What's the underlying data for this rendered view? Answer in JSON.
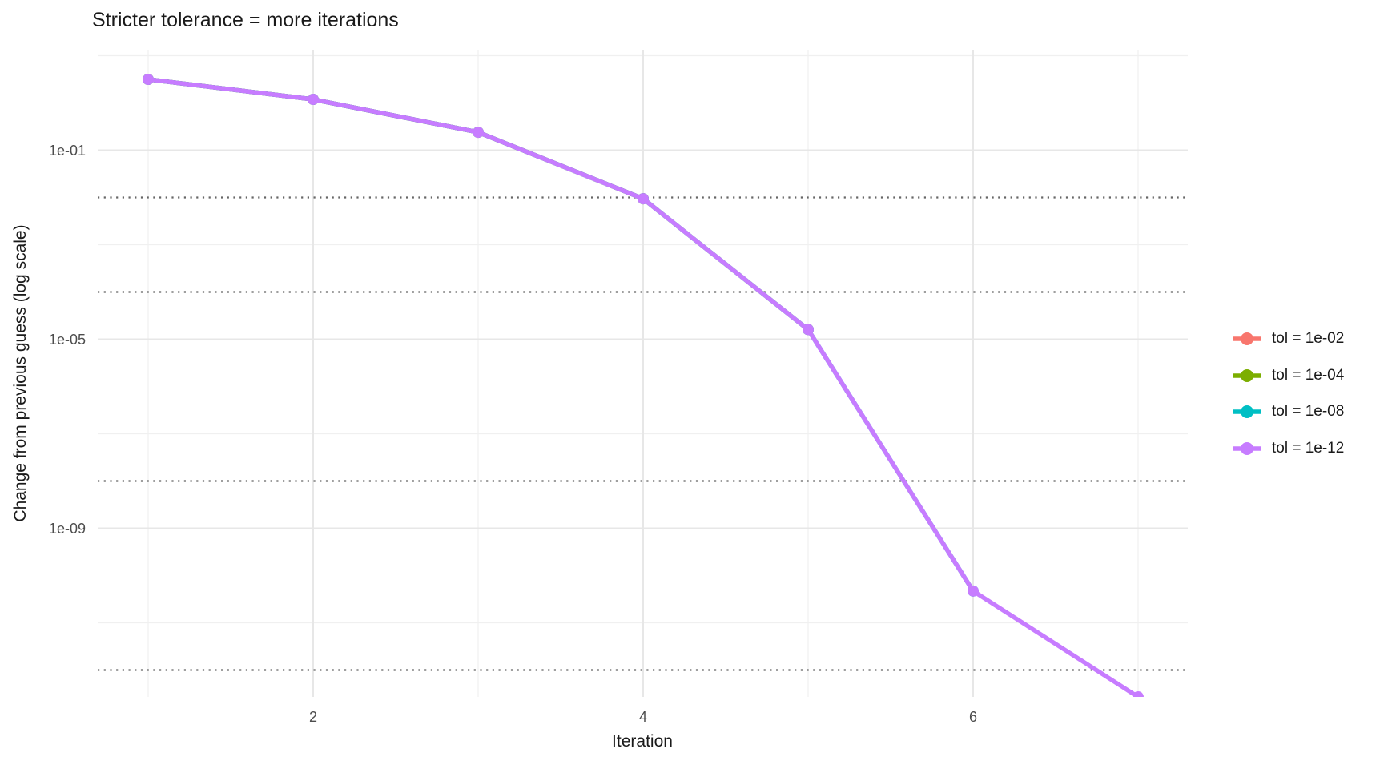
{
  "chart_data": {
    "type": "line",
    "title": "Stricter tolerance = more iterations",
    "xlabel": "Iteration",
    "ylabel": "Change from previous guess (log scale)",
    "y_axis_scale": "log10",
    "grid": true,
    "legend_position": "right",
    "x_ticks": [
      {
        "value": 2,
        "label": "2"
      },
      {
        "value": 4,
        "label": "4"
      },
      {
        "value": 6,
        "label": "6"
      }
    ],
    "x_minor": [
      1,
      3,
      5,
      7
    ],
    "x_range": [
      0.7,
      7.3
    ],
    "y_ticks": [
      {
        "value": 0.1,
        "label": "1e-01"
      },
      {
        "value": 1e-05,
        "label": "1e-05"
      },
      {
        "value": 1e-09,
        "label": "1e-09"
      }
    ],
    "y_minor": [
      10.0,
      0.001,
      1e-07,
      1e-11
    ],
    "y_range": [
      2.2e-13,
      11.5
    ],
    "tolerance_guides": {
      "style": "dotted",
      "color": "#666666",
      "values": [
        0.01,
        0.0001,
        1e-08,
        1e-12
      ]
    },
    "series": [
      {
        "name": "tol = 1e-02",
        "color": "#F8766D",
        "x": [
          1,
          2,
          3,
          4
        ],
        "y": [
          3.16,
          1.19,
          0.24,
          0.0094
        ]
      },
      {
        "name": "tol = 1e-04",
        "color": "#7CAE00",
        "x": [
          1,
          2,
          3,
          4,
          5
        ],
        "y": [
          3.16,
          1.19,
          0.24,
          0.0094,
          1.6e-05
        ]
      },
      {
        "name": "tol = 1e-08",
        "color": "#00BFC4",
        "x": [
          1,
          2,
          3,
          4,
          5,
          6
        ],
        "y": [
          3.16,
          1.19,
          0.24,
          0.0094,
          1.6e-05,
          4.7e-11
        ]
      },
      {
        "name": "tol = 1e-12",
        "color": "#C77CFF",
        "x": [
          1,
          2,
          3,
          4,
          5,
          6,
          7
        ],
        "y": [
          3.16,
          1.19,
          0.24,
          0.0094,
          1.6e-05,
          4.7e-11,
          2.7e-13
        ]
      }
    ]
  }
}
